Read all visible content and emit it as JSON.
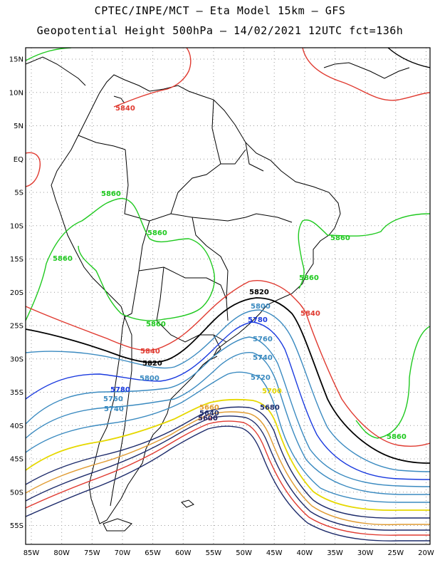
{
  "title_line1": "CPTEC/INPE/MCT –  Eta Model 15km – GFS",
  "title_line2": "Geopotential Height 500hPa – 14/02/2021 12UTC fct=136h",
  "lat_labels": [
    "15N",
    "10N",
    "5N",
    "EQ",
    "5S",
    "10S",
    "15S",
    "20S",
    "25S",
    "30S",
    "35S",
    "40S",
    "45S",
    "50S",
    "55S"
  ],
  "lon_labels": [
    "85W",
    "80W",
    "75W",
    "70W",
    "65W",
    "60W",
    "55W",
    "50W",
    "45W",
    "40W",
    "35W",
    "30W",
    "25W",
    "20W"
  ],
  "contour_labels": [
    {
      "text": "5840",
      "color": "#e03a30"
    },
    {
      "text": "5860",
      "color": "#1fc91f"
    },
    {
      "text": "5860",
      "color": "#1fc91f"
    },
    {
      "text": "5860",
      "color": "#1fc91f"
    },
    {
      "text": "5860",
      "color": "#1fc91f"
    },
    {
      "text": "5860",
      "color": "#1fc91f"
    },
    {
      "text": "5860",
      "color": "#1fc91f"
    },
    {
      "text": "5860",
      "color": "#1fc91f"
    },
    {
      "text": "5820",
      "color": "#000000"
    },
    {
      "text": "5840",
      "color": "#e03a30"
    },
    {
      "text": "5800",
      "color": "#3a8ac0"
    },
    {
      "text": "5780",
      "color": "#1a3adf"
    },
    {
      "text": "5760",
      "color": "#3a8ac0"
    },
    {
      "text": "5740",
      "color": "#3a8ac0"
    },
    {
      "text": "5720",
      "color": "#3a8ac0"
    },
    {
      "text": "5700",
      "color": "#e6d800"
    },
    {
      "text": "5680",
      "color": "#1c2a6a"
    },
    {
      "text": "5840",
      "color": "#e03a30"
    },
    {
      "text": "5820",
      "color": "#000000"
    },
    {
      "text": "5800",
      "color": "#3a8ac0"
    },
    {
      "text": "5780",
      "color": "#1a3adf"
    },
    {
      "text": "5760",
      "color": "#3a8ac0"
    },
    {
      "text": "5740",
      "color": "#3a8ac0"
    },
    {
      "text": "5660",
      "color": "#e09a30"
    },
    {
      "text": "5640",
      "color": "#1c2a6a"
    },
    {
      "text": "5620",
      "color": "#e03a30"
    },
    {
      "text": "5600",
      "color": "#1c2a6a"
    }
  ],
  "colors": {
    "c5860": "#1fc91f",
    "c5840": "#e03a30",
    "c5820": "#000000",
    "c5800": "#3a8ac0",
    "c5780": "#1a3adf",
    "c5760": "#3a8ac0",
    "c5740": "#3a8ac0",
    "c5720": "#3a8ac0",
    "c5700": "#e6d800",
    "c5680": "#1c2a6a",
    "c5660": "#e09a30",
    "c5640": "#1c2a6a",
    "c5620": "#e03a30",
    "c5600": "#1c2a6a",
    "grid": "#999999",
    "border": "#000000"
  }
}
